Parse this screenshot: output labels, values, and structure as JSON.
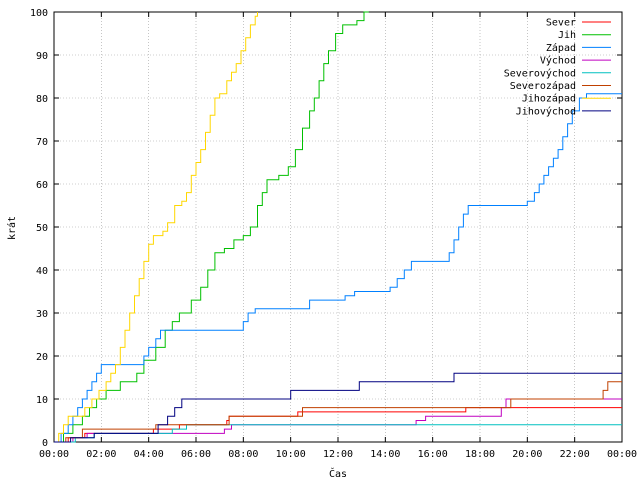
{
  "chart_data": {
    "type": "line",
    "step": true,
    "xlabel": "Čas",
    "ylabel": "krát",
    "xlim": [
      0,
      24
    ],
    "ylim": [
      0,
      100
    ],
    "x_ticks": [
      "00:00",
      "02:00",
      "04:00",
      "06:00",
      "08:00",
      "10:00",
      "12:00",
      "14:00",
      "16:00",
      "18:00",
      "20:00",
      "22:00",
      "00:00"
    ],
    "y_ticks": [
      0,
      10,
      20,
      30,
      40,
      50,
      60,
      70,
      80,
      90,
      100
    ],
    "legend_position": "top-right",
    "grid": true,
    "series": [
      {
        "name": "Sever",
        "color": "#ff0000",
        "points": [
          [
            0,
            0
          ],
          [
            0.6,
            1
          ],
          [
            1.3,
            2
          ],
          [
            4.2,
            3
          ],
          [
            5.3,
            4
          ],
          [
            7.3,
            5
          ],
          [
            7.4,
            6
          ],
          [
            10.3,
            7
          ],
          [
            17.3,
            7
          ],
          [
            17.4,
            8
          ],
          [
            24,
            8
          ]
        ]
      },
      {
        "name": "Jih",
        "color": "#00c000",
        "points": [
          [
            0,
            0
          ],
          [
            0.4,
            2
          ],
          [
            0.8,
            4
          ],
          [
            1.2,
            6
          ],
          [
            1.5,
            8
          ],
          [
            1.8,
            10
          ],
          [
            2.2,
            12
          ],
          [
            2.8,
            14
          ],
          [
            3.5,
            16
          ],
          [
            3.8,
            19
          ],
          [
            4.3,
            22
          ],
          [
            4.7,
            26
          ],
          [
            5.0,
            28
          ],
          [
            5.3,
            30
          ],
          [
            5.8,
            33
          ],
          [
            6.2,
            36
          ],
          [
            6.5,
            40
          ],
          [
            6.8,
            44
          ],
          [
            7.2,
            45
          ],
          [
            7.6,
            47
          ],
          [
            8.0,
            48
          ],
          [
            8.3,
            50
          ],
          [
            8.6,
            55
          ],
          [
            8.8,
            58
          ],
          [
            9.0,
            61
          ],
          [
            9.5,
            62
          ],
          [
            9.9,
            64
          ],
          [
            10.2,
            68
          ],
          [
            10.5,
            73
          ],
          [
            10.8,
            77
          ],
          [
            11.0,
            80
          ],
          [
            11.2,
            84
          ],
          [
            11.4,
            88
          ],
          [
            11.6,
            91
          ],
          [
            11.9,
            95
          ],
          [
            12.2,
            97
          ],
          [
            12.8,
            98
          ],
          [
            13.1,
            100
          ],
          [
            13.3,
            100
          ]
        ]
      },
      {
        "name": "Západ",
        "color": "#0080ff",
        "points": [
          [
            0,
            0
          ],
          [
            0.3,
            2
          ],
          [
            0.6,
            4
          ],
          [
            0.8,
            6
          ],
          [
            1.0,
            8
          ],
          [
            1.2,
            10
          ],
          [
            1.4,
            12
          ],
          [
            1.6,
            14
          ],
          [
            1.8,
            16
          ],
          [
            2.0,
            18
          ],
          [
            3.5,
            18
          ],
          [
            3.8,
            20
          ],
          [
            4.0,
            22
          ],
          [
            4.3,
            24
          ],
          [
            4.5,
            26
          ],
          [
            7.8,
            26
          ],
          [
            8.0,
            28
          ],
          [
            8.2,
            30
          ],
          [
            8.5,
            31
          ],
          [
            10.5,
            31
          ],
          [
            10.8,
            33
          ],
          [
            12.0,
            33
          ],
          [
            12.3,
            34
          ],
          [
            12.7,
            35
          ],
          [
            13.8,
            35
          ],
          [
            14.2,
            36
          ],
          [
            14.5,
            38
          ],
          [
            14.8,
            40
          ],
          [
            15.1,
            42
          ],
          [
            16.5,
            42
          ],
          [
            16.7,
            44
          ],
          [
            16.9,
            47
          ],
          [
            17.1,
            50
          ],
          [
            17.3,
            53
          ],
          [
            17.5,
            55
          ],
          [
            19.8,
            55
          ],
          [
            20.0,
            56
          ],
          [
            20.3,
            58
          ],
          [
            20.5,
            60
          ],
          [
            20.7,
            62
          ],
          [
            20.9,
            64
          ],
          [
            21.1,
            66
          ],
          [
            21.3,
            68
          ],
          [
            21.5,
            71
          ],
          [
            21.7,
            74
          ],
          [
            21.9,
            77
          ],
          [
            22.2,
            80
          ],
          [
            22.5,
            81
          ],
          [
            23.2,
            81
          ],
          [
            23.5,
            81
          ],
          [
            24,
            81
          ]
        ]
      },
      {
        "name": "Východ",
        "color": "#c000c0",
        "points": [
          [
            0,
            0
          ],
          [
            0.8,
            1
          ],
          [
            1.4,
            2
          ],
          [
            7.0,
            2
          ],
          [
            7.2,
            3
          ],
          [
            7.5,
            4
          ],
          [
            13.8,
            4
          ],
          [
            15.3,
            5
          ],
          [
            15.7,
            6
          ],
          [
            18.3,
            6
          ],
          [
            18.9,
            8
          ],
          [
            19.1,
            10
          ],
          [
            24,
            10
          ]
        ]
      },
      {
        "name": "Severovýchod",
        "color": "#00c0c0",
        "points": [
          [
            0,
            0
          ],
          [
            0.9,
            1
          ],
          [
            1.7,
            2
          ],
          [
            4.8,
            2
          ],
          [
            5.0,
            3
          ],
          [
            5.6,
            4
          ],
          [
            24,
            4
          ]
        ]
      },
      {
        "name": "Severozápad",
        "color": "#c04000",
        "points": [
          [
            0,
            0
          ],
          [
            0.5,
            1
          ],
          [
            1.2,
            3
          ],
          [
            3.9,
            3
          ],
          [
            4.3,
            4
          ],
          [
            7.1,
            4
          ],
          [
            7.4,
            6
          ],
          [
            10.4,
            6
          ],
          [
            10.5,
            8
          ],
          [
            18.8,
            8
          ],
          [
            19.3,
            10
          ],
          [
            22.8,
            10
          ],
          [
            23.2,
            12
          ],
          [
            23.4,
            14
          ],
          [
            24,
            14
          ]
        ]
      },
      {
        "name": "Jihozápad",
        "color": "#ffd700",
        "points": [
          [
            0,
            0
          ],
          [
            0.2,
            2
          ],
          [
            0.4,
            4
          ],
          [
            0.6,
            6
          ],
          [
            1.0,
            6
          ],
          [
            1.3,
            8
          ],
          [
            1.6,
            10
          ],
          [
            1.9,
            12
          ],
          [
            2.2,
            14
          ],
          [
            2.4,
            16
          ],
          [
            2.6,
            18
          ],
          [
            2.8,
            22
          ],
          [
            3.0,
            26
          ],
          [
            3.2,
            30
          ],
          [
            3.4,
            34
          ],
          [
            3.6,
            38
          ],
          [
            3.8,
            42
          ],
          [
            4.0,
            46
          ],
          [
            4.2,
            48
          ],
          [
            4.6,
            49
          ],
          [
            4.8,
            51
          ],
          [
            5.1,
            55
          ],
          [
            5.4,
            56
          ],
          [
            5.6,
            58
          ],
          [
            5.8,
            62
          ],
          [
            6.0,
            65
          ],
          [
            6.2,
            68
          ],
          [
            6.4,
            72
          ],
          [
            6.6,
            76
          ],
          [
            6.8,
            80
          ],
          [
            7.0,
            81
          ],
          [
            7.3,
            84
          ],
          [
            7.5,
            86
          ],
          [
            7.7,
            88
          ],
          [
            7.9,
            91
          ],
          [
            8.1,
            94
          ],
          [
            8.3,
            97
          ],
          [
            8.5,
            99
          ],
          [
            8.6,
            100
          ]
        ]
      },
      {
        "name": "Jihovýchod",
        "color": "#000080",
        "points": [
          [
            0,
            0
          ],
          [
            0.7,
            1
          ],
          [
            1.7,
            2
          ],
          [
            4.2,
            2
          ],
          [
            4.4,
            4
          ],
          [
            4.8,
            6
          ],
          [
            5.1,
            8
          ],
          [
            5.4,
            10
          ],
          [
            6.1,
            10
          ],
          [
            6.4,
            10
          ],
          [
            6.7,
            10
          ],
          [
            7.1,
            10
          ],
          [
            9.8,
            10
          ],
          [
            10.0,
            12
          ],
          [
            12.6,
            12
          ],
          [
            12.9,
            14
          ],
          [
            16.6,
            14
          ],
          [
            16.9,
            16
          ],
          [
            24,
            16
          ]
        ]
      }
    ]
  }
}
